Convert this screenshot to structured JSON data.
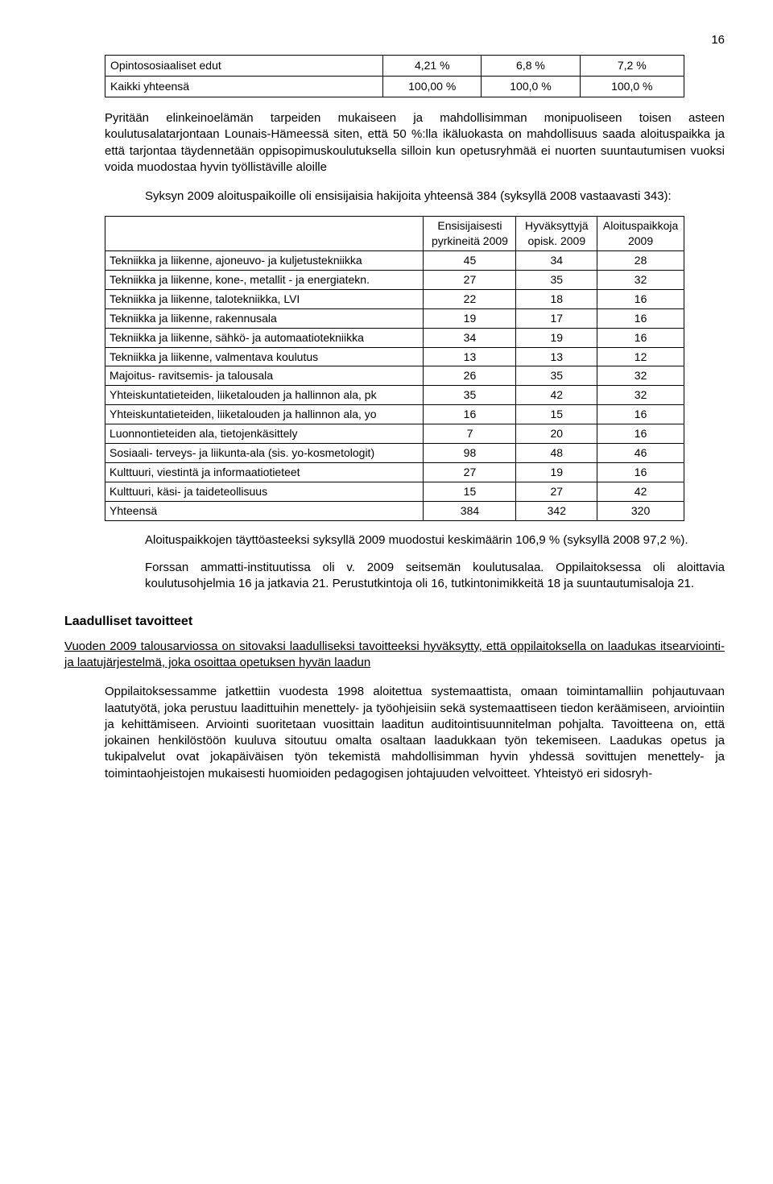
{
  "page_number": "16",
  "table1": {
    "rows": [
      {
        "label": "Opintososiaaliset edut",
        "c1": "4,21 %",
        "c2": "6,8 %",
        "c3": "7,2 %"
      },
      {
        "label": "Kaikki yhteensä",
        "c1": "100,00 %",
        "c2": "100,0 %",
        "c3": "100,0 %"
      }
    ],
    "col_widths": [
      "48%",
      "17%",
      "17%",
      "18%"
    ]
  },
  "para1": "Pyritään elinkeinoelämän tarpeiden mukaiseen ja mahdollisimman monipuoliseen toisen asteen koulutusalatarjontaan Lounais-Hämeessä siten, että 50 %:lla ikäluokasta on mahdollisuus saada aloituspaikka ja että tarjontaa täydennetään oppisopimuskoulutuksella silloin kun opetusryhmää ei nuorten suuntautumisen vuoksi voida muodostaa hyvin työllistäville aloille",
  "para2": "Syksyn 2009 aloituspaikoille oli ensisijaisia hakijoita yhteensä 384 (syksyllä 2008 vastaavasti 343):",
  "table2": {
    "headers": [
      "",
      "Ensisijaisesti pyrkineitä 2009",
      "Hyväksyttyjä opisk. 2009",
      "Aloituspaikkoja 2009"
    ],
    "rows": [
      [
        "Tekniikka ja liikenne, ajoneuvo- ja kuljetustekniikka",
        "45",
        "34",
        "28"
      ],
      [
        "Tekniikka ja liikenne, kone-, metallit - ja energiatekn.",
        "27",
        "35",
        "32"
      ],
      [
        "Tekniikka ja liikenne, talotekniikka, LVI",
        "22",
        "18",
        "16"
      ],
      [
        "Tekniikka ja liikenne, rakennusala",
        "19",
        "17",
        "16"
      ],
      [
        "Tekniikka ja liikenne, sähkö- ja automaatiotekniikka",
        "34",
        "19",
        "16"
      ],
      [
        "Tekniikka ja liikenne, valmentava koulutus",
        "13",
        "13",
        "12"
      ],
      [
        "Majoitus- ravitsemis- ja talousala",
        "26",
        "35",
        "32"
      ],
      [
        "Yhteiskuntatieteiden, liiketalouden ja hallinnon ala, pk",
        "35",
        "42",
        "32"
      ],
      [
        "Yhteiskuntatieteiden, liiketalouden ja hallinnon ala, yo",
        "16",
        "15",
        "16"
      ],
      [
        "Luonnontieteiden ala, tietojenkäsittely",
        "7",
        "20",
        "16"
      ],
      [
        "Sosiaali- terveys- ja liikunta-ala (sis. yo-kosmetologit)",
        "98",
        "48",
        "46"
      ],
      [
        "Kulttuuri, viestintä ja informaatiotieteet",
        "27",
        "19",
        "16"
      ],
      [
        "Kulttuuri, käsi- ja taideteollisuus",
        "15",
        "27",
        "42"
      ],
      [
        "Yhteensä",
        "384",
        "342",
        "320"
      ]
    ],
    "col_widths": [
      "55%",
      "16%",
      "14%",
      "15%"
    ]
  },
  "para3": "Aloituspaikkojen täyttöasteeksi syksyllä 2009 muodostui keskimäärin 106,9 % (syksyllä 2008 97,2 %).",
  "para4": "Forssan ammatti-instituutissa oli v. 2009 seitsemän koulutusalaa. Oppilaitoksessa oli aloittavia koulutusohjelmia 16 ja jatkavia 21. Perustutkintoja oli 16, tutkintonimikkeitä 18 ja suuntautumisaloja 21.",
  "section_heading": "Laadulliset tavoitteet",
  "para5": "Vuoden 2009 talousarviossa on sitovaksi laadulliseksi tavoitteeksi hyväksytty, että oppilaitoksella on laadukas itsearviointi- ja laatujärjestelmä, joka osoittaa opetuksen hyvän laadun",
  "para6": "Oppilaitoksessamme jatkettiin vuodesta 1998 aloitettua systemaattista, omaan toimintamalliin pohjautuvaan laatutyötä, joka perustuu laadittuihin menettely- ja työohjeisiin sekä systemaattiseen tiedon keräämiseen, arviointiin ja kehittämiseen. Arviointi suoritetaan vuosittain laaditun auditointisuunnitelman pohjalta. Tavoitteena on, että jokainen henkilöstöön kuuluva sitoutuu omalta osaltaan laadukkaan työn tekemiseen. Laadukas opetus ja tukipalvelut ovat jokapäiväisen työn tekemistä mahdollisimman hyvin yhdessä sovittujen menettely- ja toimintaohjeistojen mukaisesti huomioiden pedagogisen johtajuuden velvoitteet. Yhteistyö eri sidosryh-"
}
